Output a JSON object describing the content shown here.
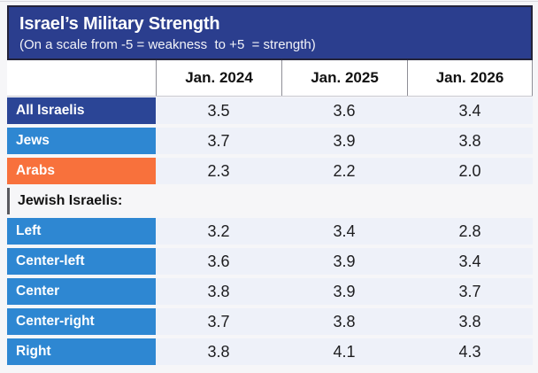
{
  "title": "Israel’s Military Strength",
  "subtitle": "(On a scale from -5 = weakness  to +5  = strength)",
  "columns": [
    "Jan. 2024",
    "Jan. 2025",
    "Jan. 2026"
  ],
  "rows": [
    {
      "label": "All Israelis",
      "type": "navy",
      "values": [
        "3.5",
        "3.6",
        "3.4"
      ]
    },
    {
      "label": "Jews",
      "type": "blue",
      "values": [
        "3.7",
        "3.9",
        "3.8"
      ]
    },
    {
      "label": "Arabs",
      "type": "orange",
      "values": [
        "2.3",
        "2.2",
        "2.0"
      ]
    },
    {
      "label": "Jewish Israelis:",
      "type": "section",
      "values": [
        "",
        "",
        ""
      ]
    },
    {
      "label": "Left",
      "type": "blue",
      "values": [
        "3.2",
        "3.4",
        "2.8"
      ]
    },
    {
      "label": "Center-left",
      "type": "blue",
      "values": [
        "3.6",
        "3.9",
        "3.4"
      ]
    },
    {
      "label": "Center",
      "type": "blue",
      "values": [
        "3.8",
        "3.9",
        "3.7"
      ]
    },
    {
      "label": "Center-right",
      "type": "blue",
      "values": [
        "3.7",
        "3.8",
        "3.8"
      ]
    },
    {
      "label": "Right",
      "type": "blue",
      "values": [
        "3.8",
        "4.1",
        "4.3"
      ]
    }
  ],
  "colors": {
    "title_box": "#2b3e8e",
    "title_border": "#23233a",
    "navy_row": "#2b4596",
    "blue_row": "#2e87d2",
    "orange_row": "#f8713c",
    "value_cell_bg": "#eef1f9",
    "page_bg": "#f6f6f8"
  },
  "chart_data": {
    "type": "table",
    "title": "Israel’s Military Strength",
    "subtitle": "(On a scale from -5 = weakness  to +5  = strength)",
    "scale": {
      "min": -5,
      "max": 5,
      "min_label": "weakness",
      "max_label": "strength"
    },
    "columns": [
      "Jan. 2024",
      "Jan. 2025",
      "Jan. 2026"
    ],
    "groups": [
      {
        "label": "All Israelis",
        "values": [
          3.5,
          3.6,
          3.4
        ]
      },
      {
        "label": "Jews",
        "values": [
          3.7,
          3.9,
          3.8
        ]
      },
      {
        "label": "Arabs",
        "values": [
          2.3,
          2.2,
          2.0
        ]
      }
    ],
    "section_label": "Jewish Israelis:",
    "jewish_israelis_groups": [
      {
        "label": "Left",
        "values": [
          3.2,
          3.4,
          2.8
        ]
      },
      {
        "label": "Center-left",
        "values": [
          3.6,
          3.9,
          3.4
        ]
      },
      {
        "label": "Center",
        "values": [
          3.8,
          3.9,
          3.7
        ]
      },
      {
        "label": "Center-right",
        "values": [
          3.7,
          3.8,
          3.8
        ]
      },
      {
        "label": "Right",
        "values": [
          3.8,
          4.1,
          4.3
        ]
      }
    ]
  }
}
